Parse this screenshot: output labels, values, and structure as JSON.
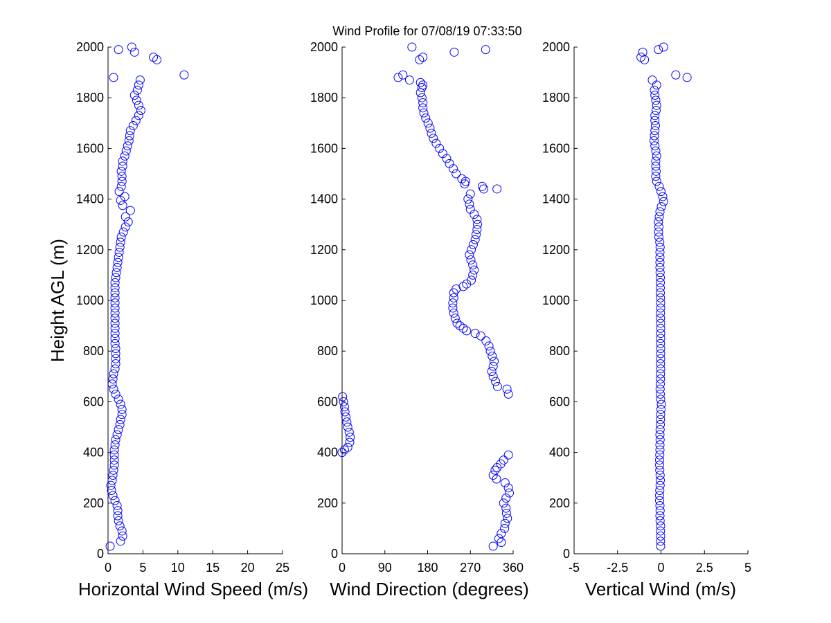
{
  "title": "Wind Profile for  07/08/19 07:33:50",
  "colors": {
    "marker": "#0000ff",
    "axis": "#000000",
    "background": "#ffffff"
  },
  "chart_data": [
    {
      "type": "scatter",
      "xlabel": "Horizontal Wind Speed (m/s)",
      "ylabel": "Height AGL (m)",
      "xlim": [
        0,
        25
      ],
      "ylim": [
        0,
        2000
      ],
      "xticks": [
        "0",
        "5",
        "10",
        "15",
        "20",
        "25"
      ],
      "yticks": [
        "0",
        "200",
        "400",
        "600",
        "800",
        "1000",
        "1200",
        "1400",
        "1600",
        "1800",
        "2000"
      ],
      "x_speed_profile": [
        [
          30,
          0.3
        ],
        [
          50,
          1.8
        ],
        [
          70,
          2.1
        ],
        [
          90,
          2.0
        ],
        [
          110,
          1.7
        ],
        [
          130,
          1.5
        ],
        [
          150,
          1.4
        ],
        [
          170,
          1.4
        ],
        [
          190,
          1.3
        ],
        [
          210,
          1.0
        ],
        [
          230,
          0.7
        ],
        [
          250,
          0.5
        ],
        [
          270,
          0.4
        ],
        [
          290,
          0.6
        ],
        [
          310,
          0.7
        ],
        [
          330,
          0.8
        ],
        [
          350,
          0.9
        ],
        [
          370,
          0.9
        ],
        [
          390,
          0.9
        ],
        [
          410,
          0.9
        ],
        [
          430,
          1.0
        ],
        [
          450,
          1.1
        ],
        [
          470,
          1.3
        ],
        [
          490,
          1.5
        ],
        [
          510,
          1.7
        ],
        [
          530,
          1.8
        ],
        [
          550,
          2.0
        ],
        [
          570,
          2.0
        ],
        [
          590,
          1.8
        ],
        [
          610,
          1.5
        ],
        [
          630,
          1.1
        ],
        [
          650,
          0.8
        ],
        [
          670,
          0.6
        ],
        [
          690,
          0.7
        ],
        [
          710,
          0.8
        ],
        [
          730,
          1.0
        ],
        [
          750,
          1.1
        ],
        [
          770,
          1.1
        ],
        [
          790,
          1.1
        ],
        [
          810,
          1.1
        ],
        [
          830,
          1.0
        ],
        [
          850,
          1.0
        ],
        [
          870,
          1.0
        ],
        [
          890,
          1.0
        ],
        [
          910,
          1.0
        ],
        [
          930,
          1.0
        ],
        [
          950,
          1.0
        ],
        [
          970,
          1.0
        ],
        [
          990,
          1.0
        ],
        [
          1010,
          1.0
        ],
        [
          1030,
          1.0
        ],
        [
          1050,
          1.0
        ],
        [
          1070,
          1.0
        ],
        [
          1090,
          1.1
        ],
        [
          1110,
          1.2
        ],
        [
          1130,
          1.3
        ],
        [
          1150,
          1.4
        ],
        [
          1170,
          1.5
        ],
        [
          1190,
          1.6
        ],
        [
          1210,
          1.7
        ],
        [
          1230,
          1.8
        ],
        [
          1250,
          1.9
        ],
        [
          1270,
          2.2
        ],
        [
          1290,
          2.5
        ],
        [
          1310,
          2.9
        ],
        [
          1330,
          2.5
        ],
        [
          1355,
          3.2
        ],
        [
          1375,
          2.1
        ],
        [
          1395,
          1.8
        ],
        [
          1410,
          2.4
        ],
        [
          1430,
          1.6
        ],
        [
          1450,
          1.9
        ],
        [
          1470,
          2.0
        ],
        [
          1490,
          2.0
        ],
        [
          1510,
          1.9
        ],
        [
          1530,
          2.1
        ],
        [
          1550,
          2.1
        ],
        [
          1570,
          2.4
        ],
        [
          1590,
          2.6
        ],
        [
          1610,
          2.8
        ],
        [
          1630,
          3.0
        ],
        [
          1650,
          3.1
        ],
        [
          1670,
          3.2
        ],
        [
          1690,
          3.6
        ],
        [
          1710,
          4.0
        ],
        [
          1730,
          4.4
        ],
        [
          1750,
          4.7
        ],
        [
          1770,
          4.4
        ],
        [
          1790,
          4.1
        ],
        [
          1810,
          3.8
        ],
        [
          1830,
          4.2
        ],
        [
          1850,
          4.4
        ],
        [
          1870,
          4.6
        ],
        [
          1880,
          0.8
        ],
        [
          1890,
          10.9
        ],
        [
          1950,
          7.0
        ],
        [
          1960,
          6.5
        ],
        [
          1980,
          3.8
        ],
        [
          1990,
          1.5
        ],
        [
          2000,
          3.4
        ]
      ]
    },
    {
      "type": "scatter",
      "xlabel": "Wind Direction (degrees)",
      "xlim": [
        0,
        360
      ],
      "ylim": [
        0,
        2000
      ],
      "xticks": [
        "0",
        "90",
        "180",
        "270",
        "360"
      ],
      "yticks": [
        "0",
        "200",
        "400",
        "600",
        "800",
        "1000",
        "1200",
        "1400",
        "1600",
        "1800",
        "2000"
      ],
      "x_direction_profile": [
        [
          30,
          318
        ],
        [
          45,
          335
        ],
        [
          60,
          330
        ],
        [
          80,
          335
        ],
        [
          100,
          342
        ],
        [
          120,
          343
        ],
        [
          140,
          348
        ],
        [
          160,
          346
        ],
        [
          180,
          345
        ],
        [
          200,
          340
        ],
        [
          220,
          345
        ],
        [
          240,
          352
        ],
        [
          260,
          350
        ],
        [
          280,
          343
        ],
        [
          295,
          325
        ],
        [
          310,
          318
        ],
        [
          330,
          322
        ],
        [
          340,
          326
        ],
        [
          355,
          334
        ],
        [
          370,
          340
        ],
        [
          390,
          350
        ],
        [
          400,
          0
        ],
        [
          410,
          5
        ],
        [
          420,
          12
        ],
        [
          440,
          16
        ],
        [
          460,
          17
        ],
        [
          480,
          15
        ],
        [
          500,
          12
        ],
        [
          520,
          10
        ],
        [
          540,
          8
        ],
        [
          560,
          6
        ],
        [
          580,
          5
        ],
        [
          600,
          3
        ],
        [
          620,
          1
        ],
        [
          630,
          350
        ],
        [
          650,
          347
        ],
        [
          660,
          327
        ],
        [
          680,
          323
        ],
        [
          700,
          318
        ],
        [
          720,
          315
        ],
        [
          740,
          318
        ],
        [
          760,
          320
        ],
        [
          780,
          316
        ],
        [
          800,
          312
        ],
        [
          820,
          309
        ],
        [
          840,
          303
        ],
        [
          860,
          292
        ],
        [
          870,
          280
        ],
        [
          880,
          262
        ],
        [
          890,
          255
        ],
        [
          900,
          248
        ],
        [
          910,
          242
        ],
        [
          930,
          238
        ],
        [
          950,
          235
        ],
        [
          970,
          233
        ],
        [
          990,
          233
        ],
        [
          1010,
          235
        ],
        [
          1030,
          235
        ],
        [
          1045,
          240
        ],
        [
          1055,
          255
        ],
        [
          1065,
          262
        ],
        [
          1080,
          272
        ],
        [
          1100,
          275
        ],
        [
          1120,
          278
        ],
        [
          1140,
          275
        ],
        [
          1160,
          271
        ],
        [
          1180,
          268
        ],
        [
          1200,
          272
        ],
        [
          1220,
          276
        ],
        [
          1240,
          280
        ],
        [
          1260,
          282
        ],
        [
          1280,
          284
        ],
        [
          1300,
          285
        ],
        [
          1320,
          284
        ],
        [
          1340,
          278
        ],
        [
          1360,
          270
        ],
        [
          1380,
          268
        ],
        [
          1400,
          265
        ],
        [
          1420,
          270
        ],
        [
          1440,
          298
        ],
        [
          1440,
          326
        ],
        [
          1450,
          295
        ],
        [
          1460,
          258
        ],
        [
          1470,
          260
        ],
        [
          1480,
          252
        ],
        [
          1500,
          240
        ],
        [
          1520,
          234
        ],
        [
          1540,
          226
        ],
        [
          1560,
          220
        ],
        [
          1580,
          212
        ],
        [
          1600,
          205
        ],
        [
          1620,
          198
        ],
        [
          1640,
          192
        ],
        [
          1660,
          188
        ],
        [
          1680,
          185
        ],
        [
          1700,
          181
        ],
        [
          1720,
          176
        ],
        [
          1740,
          172
        ],
        [
          1760,
          170
        ],
        [
          1780,
          170
        ],
        [
          1800,
          168
        ],
        [
          1820,
          165
        ],
        [
          1840,
          168
        ],
        [
          1850,
          170
        ],
        [
          1860,
          165
        ],
        [
          1870,
          142
        ],
        [
          1880,
          118
        ],
        [
          1890,
          128
        ],
        [
          1950,
          163
        ],
        [
          1960,
          170
        ],
        [
          1980,
          236
        ],
        [
          1990,
          302
        ],
        [
          2000,
          147
        ]
      ]
    },
    {
      "type": "scatter",
      "xlabel": "Vertical Wind (m/s)",
      "xlim": [
        -5,
        5
      ],
      "ylim": [
        0,
        2000
      ],
      "xticks": [
        "-5",
        "-2.5",
        "0",
        "2.5",
        "5"
      ],
      "yticks": [
        "0",
        "200",
        "400",
        "600",
        "800",
        "1000",
        "1200",
        "1400",
        "1600",
        "1800",
        "2000"
      ],
      "x_vertical_profile": [
        [
          30,
          -0.02
        ],
        [
          50,
          -0.03
        ],
        [
          70,
          -0.02
        ],
        [
          90,
          -0.03
        ],
        [
          110,
          -0.02
        ],
        [
          130,
          -0.05
        ],
        [
          150,
          -0.06
        ],
        [
          170,
          -0.05
        ],
        [
          190,
          -0.06
        ],
        [
          210,
          -0.08
        ],
        [
          230,
          -0.08
        ],
        [
          250,
          -0.07
        ],
        [
          270,
          -0.05
        ],
        [
          290,
          -0.04
        ],
        [
          310,
          -0.05
        ],
        [
          330,
          -0.07
        ],
        [
          350,
          -0.08
        ],
        [
          370,
          -0.08
        ],
        [
          390,
          -0.07
        ],
        [
          410,
          -0.06
        ],
        [
          430,
          -0.06
        ],
        [
          450,
          -0.05
        ],
        [
          470,
          -0.06
        ],
        [
          490,
          -0.05
        ],
        [
          510,
          -0.04
        ],
        [
          530,
          -0.03
        ],
        [
          550,
          -0.02
        ],
        [
          570,
          0.0
        ],
        [
          590,
          0.02
        ],
        [
          610,
          -0.02
        ],
        [
          630,
          -0.04
        ],
        [
          650,
          -0.05
        ],
        [
          670,
          -0.04
        ],
        [
          690,
          -0.03
        ],
        [
          710,
          -0.03
        ],
        [
          730,
          -0.02
        ],
        [
          750,
          -0.03
        ],
        [
          770,
          -0.02
        ],
        [
          790,
          -0.02
        ],
        [
          810,
          -0.02
        ],
        [
          830,
          -0.03
        ],
        [
          850,
          -0.02
        ],
        [
          870,
          -0.02
        ],
        [
          890,
          -0.02
        ],
        [
          910,
          -0.02
        ],
        [
          930,
          -0.03
        ],
        [
          950,
          -0.03
        ],
        [
          970,
          -0.02
        ],
        [
          990,
          -0.02
        ],
        [
          1010,
          -0.03
        ],
        [
          1030,
          -0.04
        ],
        [
          1050,
          -0.04
        ],
        [
          1070,
          -0.04
        ],
        [
          1090,
          -0.04
        ],
        [
          1110,
          -0.05
        ],
        [
          1130,
          -0.06
        ],
        [
          1150,
          -0.06
        ],
        [
          1170,
          -0.06
        ],
        [
          1190,
          -0.06
        ],
        [
          1210,
          -0.05
        ],
        [
          1230,
          -0.07
        ],
        [
          1250,
          -0.12
        ],
        [
          1270,
          -0.14
        ],
        [
          1290,
          -0.12
        ],
        [
          1310,
          -0.15
        ],
        [
          1330,
          -0.1
        ],
        [
          1350,
          -0.06
        ],
        [
          1370,
          0.02
        ],
        [
          1390,
          0.15
        ],
        [
          1410,
          0.1
        ],
        [
          1430,
          0.0
        ],
        [
          1450,
          -0.1
        ],
        [
          1470,
          -0.25
        ],
        [
          1490,
          -0.3
        ],
        [
          1510,
          -0.28
        ],
        [
          1530,
          -0.3
        ],
        [
          1550,
          -0.3
        ],
        [
          1570,
          -0.25
        ],
        [
          1590,
          -0.3
        ],
        [
          1610,
          -0.35
        ],
        [
          1630,
          -0.4
        ],
        [
          1650,
          -0.38
        ],
        [
          1670,
          -0.35
        ],
        [
          1690,
          -0.32
        ],
        [
          1710,
          -0.35
        ],
        [
          1730,
          -0.35
        ],
        [
          1750,
          -0.28
        ],
        [
          1770,
          -0.25
        ],
        [
          1790,
          -0.3
        ],
        [
          1810,
          -0.35
        ],
        [
          1830,
          -0.38
        ],
        [
          1850,
          -0.25
        ],
        [
          1870,
          -0.5
        ],
        [
          1880,
          1.5
        ],
        [
          1890,
          0.85
        ],
        [
          1950,
          -0.95
        ],
        [
          1960,
          -1.15
        ],
        [
          1980,
          -1.05
        ],
        [
          1990,
          -0.15
        ],
        [
          2000,
          0.15
        ]
      ]
    }
  ]
}
